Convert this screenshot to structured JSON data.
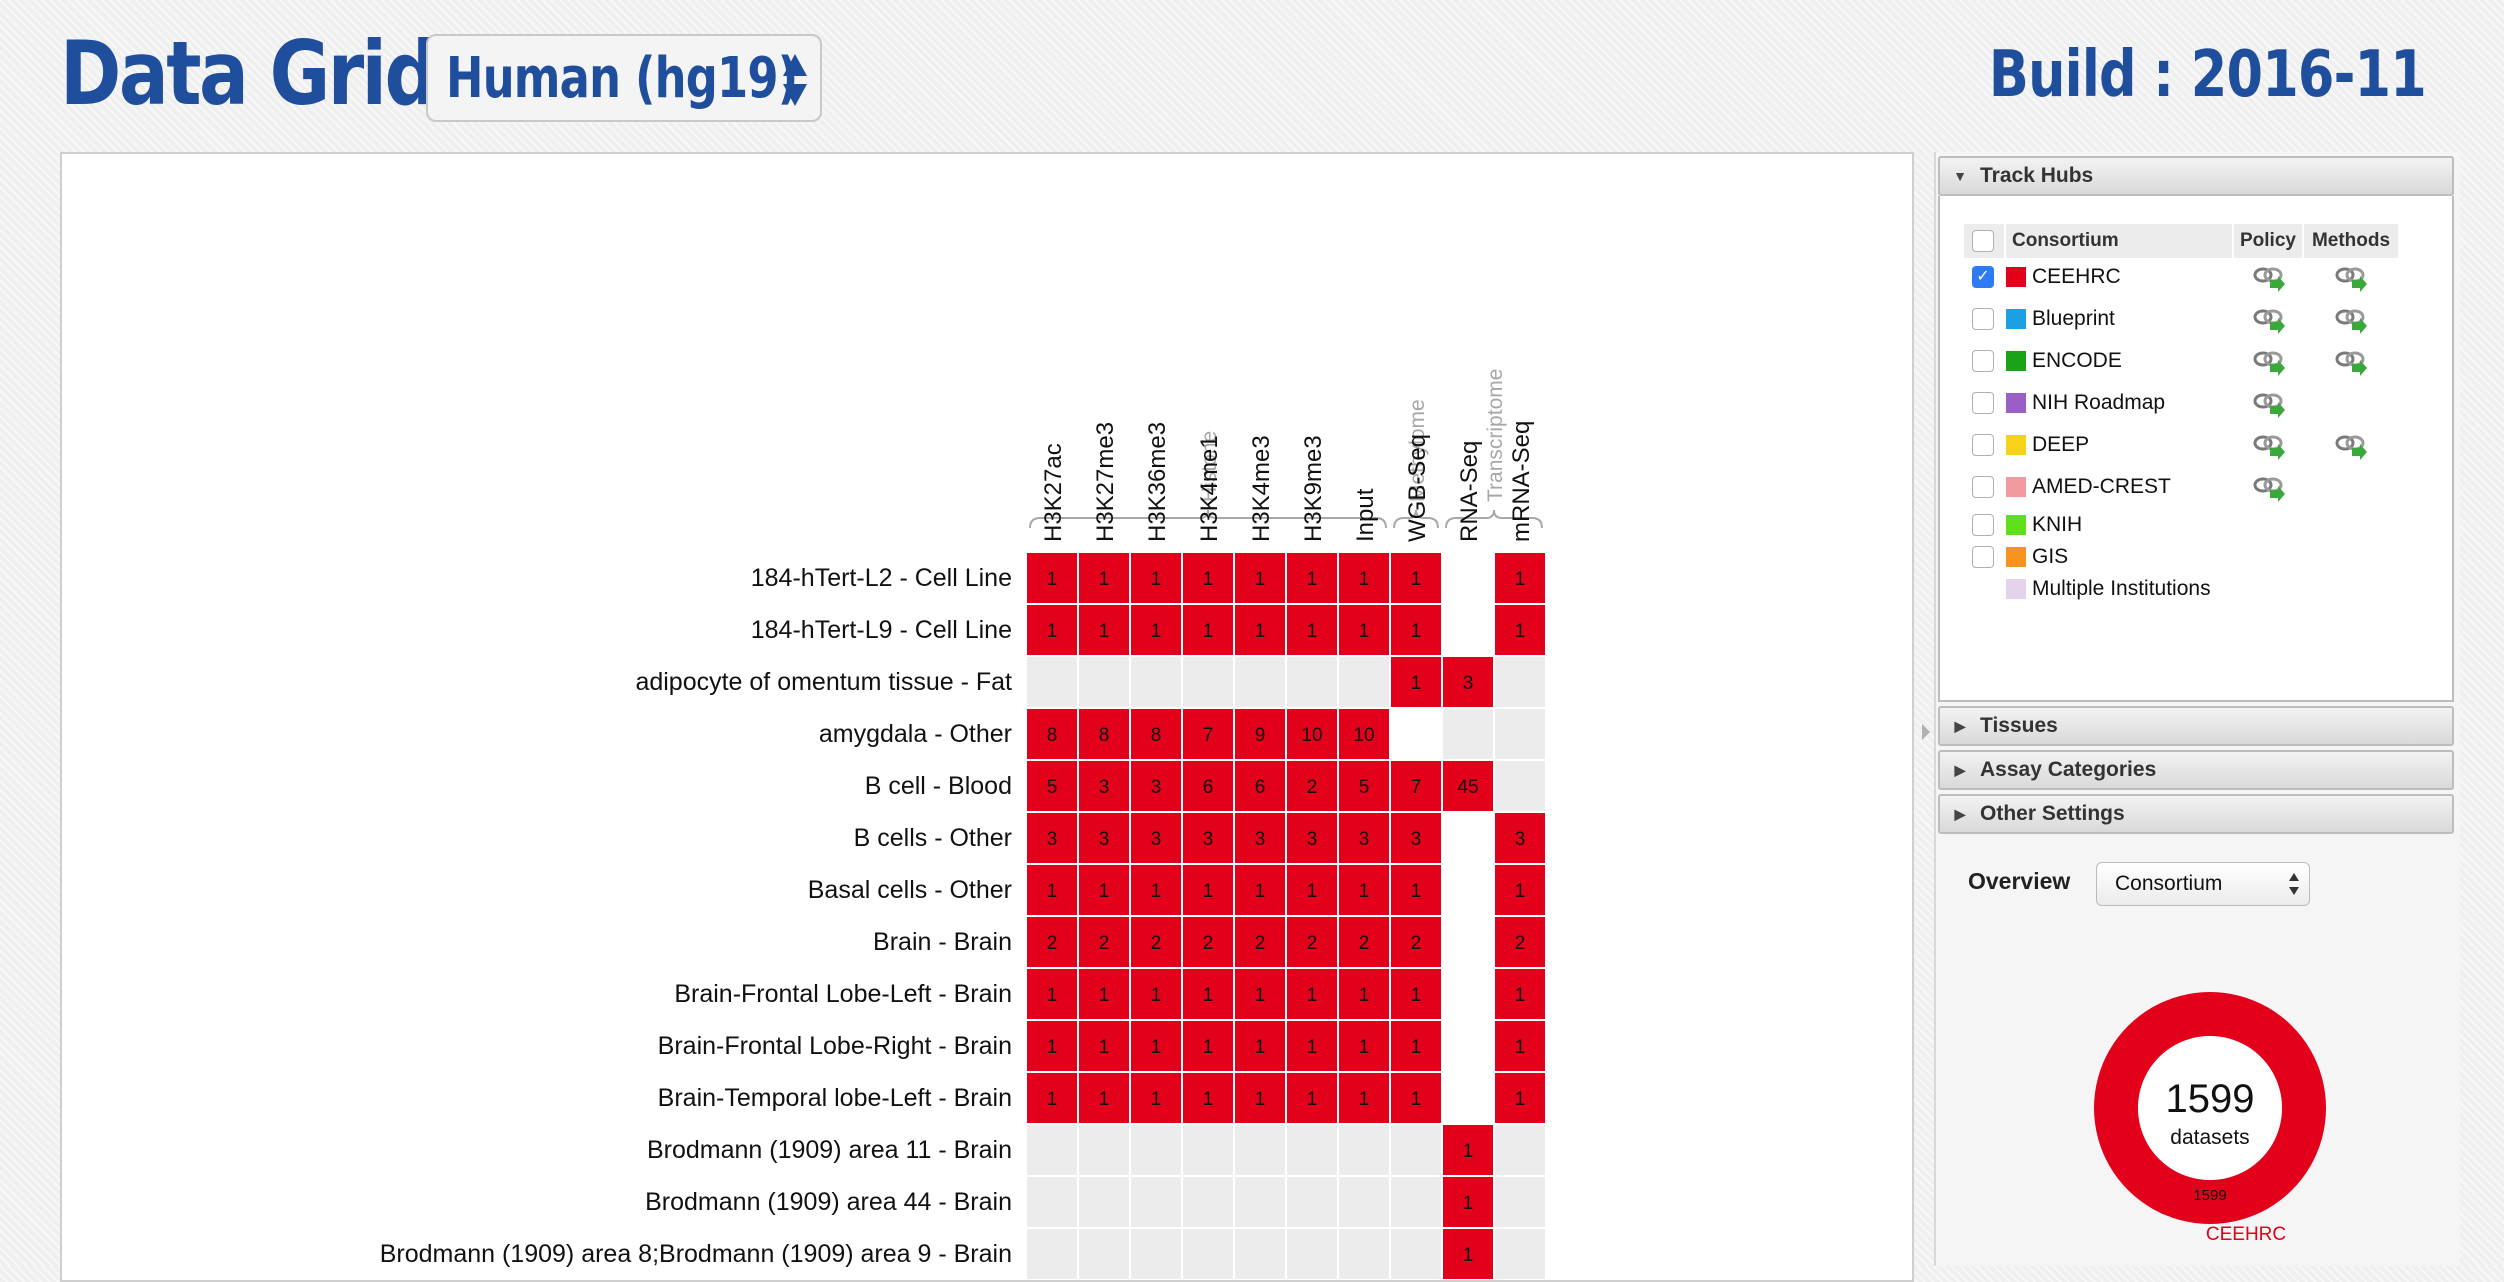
{
  "header": {
    "title": "Data Grid :",
    "genome_select": "Human (hg19)",
    "build": "Build : 2016-11"
  },
  "grid": {
    "groups": [
      {
        "label": "Histone",
        "span": [
          0,
          6
        ]
      },
      {
        "label": "Methylome",
        "span": [
          7,
          7
        ]
      },
      {
        "label": "Transcriptome",
        "span": [
          8,
          9
        ]
      }
    ],
    "columns": [
      "H3K27ac",
      "H3K27me3",
      "H3K36me3",
      "H3K4me1",
      "H3K4me3",
      "H3K9me3",
      "Input",
      "WGB-Seq",
      "RNA-Seq",
      "mRNA-Seq"
    ],
    "rows": [
      {
        "label": "184-hTert-L2 - Cell Line",
        "cells": [
          1,
          1,
          1,
          1,
          1,
          1,
          1,
          1,
          null,
          1
        ]
      },
      {
        "label": "184-hTert-L9 - Cell Line",
        "cells": [
          1,
          1,
          1,
          1,
          1,
          1,
          1,
          1,
          null,
          1
        ]
      },
      {
        "label": "adipocyte of omentum tissue - Fat",
        "cells": [
          0,
          0,
          0,
          0,
          0,
          0,
          0,
          1,
          3,
          0
        ]
      },
      {
        "label": "amygdala - Other",
        "cells": [
          8,
          8,
          8,
          7,
          9,
          10,
          10,
          null,
          0,
          0
        ]
      },
      {
        "label": "B cell - Blood",
        "cells": [
          5,
          3,
          3,
          6,
          6,
          2,
          5,
          7,
          45,
          0
        ]
      },
      {
        "label": "B cells - Other",
        "cells": [
          3,
          3,
          3,
          3,
          3,
          3,
          3,
          3,
          null,
          3
        ]
      },
      {
        "label": "Basal cells - Other",
        "cells": [
          1,
          1,
          1,
          1,
          1,
          1,
          1,
          1,
          null,
          1
        ]
      },
      {
        "label": "Brain - Brain",
        "cells": [
          2,
          2,
          2,
          2,
          2,
          2,
          2,
          2,
          null,
          2
        ]
      },
      {
        "label": "Brain-Frontal Lobe-Left - Brain",
        "cells": [
          1,
          1,
          1,
          1,
          1,
          1,
          1,
          1,
          null,
          1
        ]
      },
      {
        "label": "Brain-Frontal Lobe-Right - Brain",
        "cells": [
          1,
          1,
          1,
          1,
          1,
          1,
          1,
          1,
          null,
          1
        ]
      },
      {
        "label": "Brain-Temporal lobe-Left - Brain",
        "cells": [
          1,
          1,
          1,
          1,
          1,
          1,
          1,
          1,
          null,
          1
        ]
      },
      {
        "label": "Brodmann (1909) area 11 - Brain",
        "cells": [
          0,
          0,
          0,
          0,
          0,
          0,
          0,
          0,
          1,
          0
        ]
      },
      {
        "label": "Brodmann (1909) area 44 - Brain",
        "cells": [
          0,
          0,
          0,
          0,
          0,
          0,
          0,
          0,
          1,
          0
        ]
      },
      {
        "label": "Brodmann (1909) area 8;Brodmann (1909) area 9 - Brain",
        "cells": [
          0,
          0,
          0,
          0,
          0,
          0,
          0,
          0,
          1,
          0
        ]
      }
    ],
    "colors": {
      "filled": "#e2001a",
      "empty": "#ececec",
      "blank": "#ffffff"
    }
  },
  "sidebar": {
    "track_hubs": {
      "title": "Track Hubs",
      "headers": {
        "consortium": "Consortium",
        "policy": "Policy",
        "methods": "Methods"
      },
      "consortia": [
        {
          "name": "CEEHRC",
          "color": "#e2001a",
          "checked": true,
          "policy": true,
          "methods": true
        },
        {
          "name": "Blueprint",
          "color": "#1ba1e2",
          "checked": false,
          "policy": true,
          "methods": true
        },
        {
          "name": "ENCODE",
          "color": "#1aa31a",
          "checked": false,
          "policy": true,
          "methods": true
        },
        {
          "name": "NIH Roadmap",
          "color": "#9a5ec7",
          "checked": false,
          "policy": true,
          "methods": false
        },
        {
          "name": "DEEP",
          "color": "#f7d21a",
          "checked": false,
          "policy": true,
          "methods": true
        },
        {
          "name": "AMED-CREST",
          "color": "#f29aa0",
          "checked": false,
          "policy": true,
          "methods": false
        },
        {
          "name": "KNIH",
          "color": "#5fe01a",
          "checked": false,
          "policy": false,
          "methods": false
        },
        {
          "name": "GIS",
          "color": "#f7941d",
          "checked": false,
          "policy": false,
          "methods": false
        },
        {
          "name": "Multiple Institutions",
          "color": "#e3d3ec",
          "checked": null,
          "policy": false,
          "methods": false
        }
      ]
    },
    "tissues": "Tissues",
    "assay_categories": "Assay Categories",
    "other_settings": "Other Settings",
    "overview_label": "Overview",
    "overview_select": "Consortium",
    "donut": {
      "total": "1599",
      "total_label": "datasets",
      "slice_value": "1599",
      "slice_label": "CEEHRC"
    }
  },
  "chart_data": {
    "type": "pie",
    "title": "",
    "slices": [
      {
        "label": "CEEHRC",
        "value": 1599,
        "color": "#e2001a"
      }
    ],
    "center_text": [
      "1599",
      "datasets"
    ]
  }
}
